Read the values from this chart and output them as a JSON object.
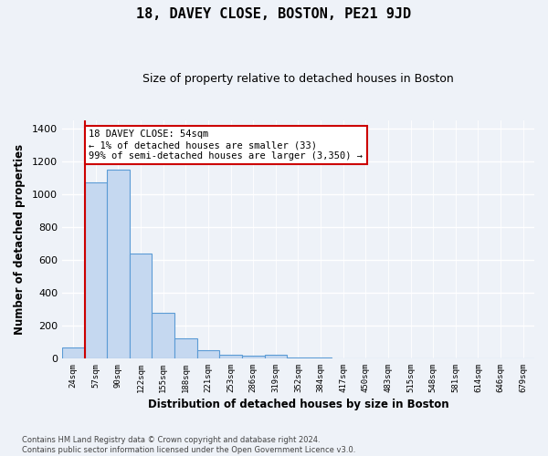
{
  "title": "18, DAVEY CLOSE, BOSTON, PE21 9JD",
  "subtitle": "Size of property relative to detached houses in Boston",
  "xlabel": "Distribution of detached houses by size in Boston",
  "ylabel": "Number of detached properties",
  "categories": [
    "24sqm",
    "57sqm",
    "90sqm",
    "122sqm",
    "155sqm",
    "188sqm",
    "221sqm",
    "253sqm",
    "286sqm",
    "319sqm",
    "352sqm",
    "384sqm",
    "417sqm",
    "450sqm",
    "483sqm",
    "515sqm",
    "548sqm",
    "581sqm",
    "614sqm",
    "646sqm",
    "679sqm"
  ],
  "values": [
    65,
    1070,
    1150,
    640,
    275,
    120,
    48,
    20,
    15,
    22,
    5,
    3,
    0,
    0,
    0,
    0,
    0,
    0,
    0,
    0,
    0
  ],
  "bar_color": "#c5d8f0",
  "bar_edge_color": "#5b9bd5",
  "vline_x": 1.0,
  "vline_color": "#cc0000",
  "annotation_text": "18 DAVEY CLOSE: 54sqm\n← 1% of detached houses are smaller (33)\n99% of semi-detached houses are larger (3,350) →",
  "annotation_box_color": "#ffffff",
  "annotation_box_edge": "#cc0000",
  "ylim": [
    0,
    1450
  ],
  "yticks": [
    0,
    200,
    400,
    600,
    800,
    1000,
    1200,
    1400
  ],
  "footer": "Contains HM Land Registry data © Crown copyright and database right 2024.\nContains public sector information licensed under the Open Government Licence v3.0.",
  "background_color": "#eef2f8",
  "plot_background": "#eef2f8",
  "title_fontsize": 11,
  "subtitle_fontsize": 9
}
